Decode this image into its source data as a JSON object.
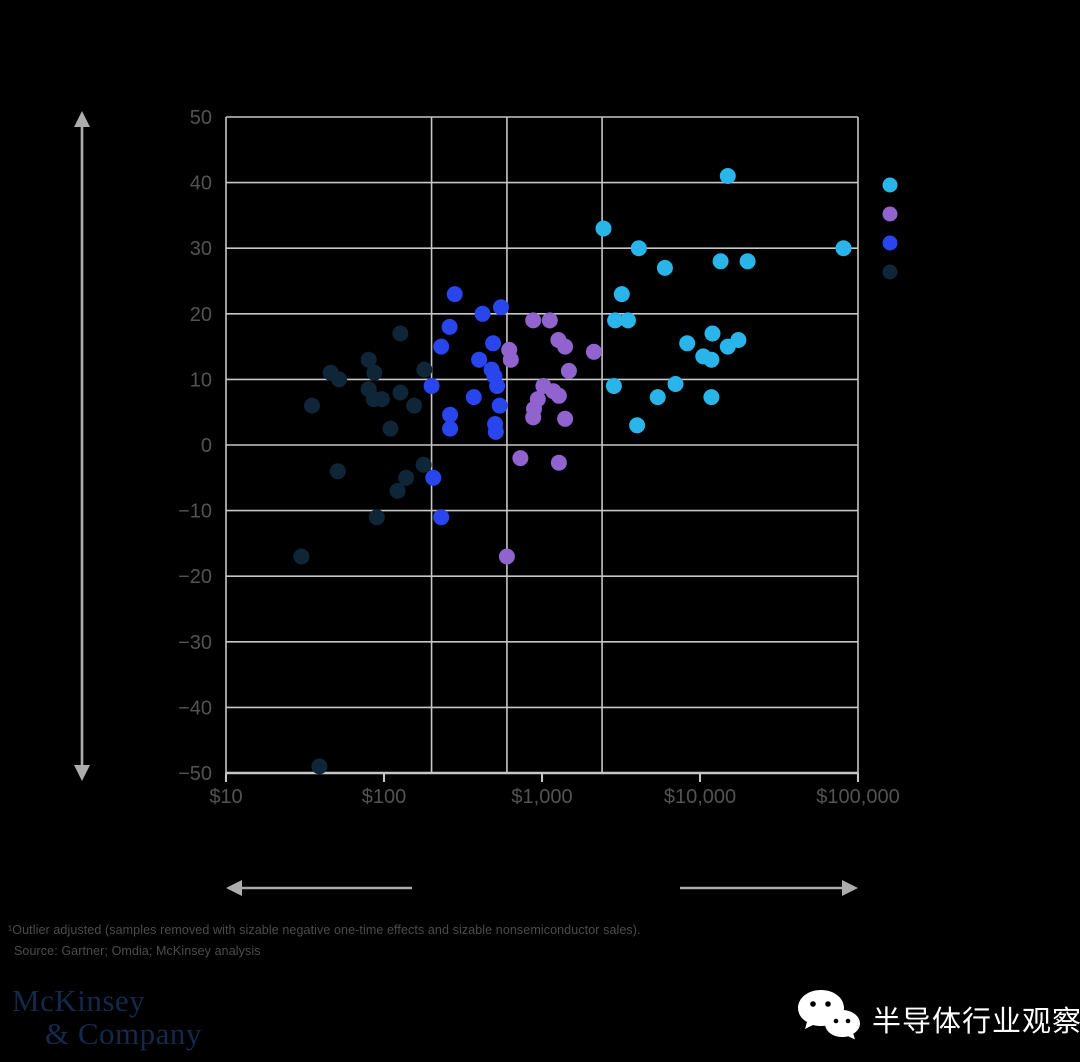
{
  "chart_data": {
    "type": "scatter",
    "x_axis": {
      "scale": "log",
      "values": [
        10,
        100,
        1000,
        10000,
        100000
      ],
      "tick_labels": [
        "$10",
        "$100",
        "$1,000",
        "$10,000",
        "$100,000"
      ],
      "range": [
        10,
        100000
      ]
    },
    "y_axis": {
      "values": [
        50,
        40,
        30,
        20,
        10,
        0,
        -10,
        -20,
        -30,
        -40,
        -50
      ],
      "tick_labels": [
        "50",
        "40",
        "30",
        "20",
        "10",
        "0",
        "−10",
        "−20",
        "−30",
        "−40",
        "−50"
      ],
      "range": [
        -50,
        50
      ]
    },
    "grid": true,
    "quartile_boundaries": [
      200,
      600,
      2400
    ],
    "style": {
      "grid_color": "#C6C6C6",
      "tick_color": "#535353",
      "dot_radius": 8
    },
    "series": [
      {
        "name": "series-navy",
        "color": "#0E2638",
        "points": [
          [
            127,
            17
          ],
          [
            80,
            13
          ],
          [
            46,
            11
          ],
          [
            52,
            10
          ],
          [
            87,
            11
          ],
          [
            180,
            11.5
          ],
          [
            80,
            8.5
          ],
          [
            86,
            7
          ],
          [
            97,
            7
          ],
          [
            127,
            8
          ],
          [
            155,
            6
          ],
          [
            35,
            6
          ],
          [
            110,
            2.5
          ],
          [
            178,
            -3
          ],
          [
            51,
            -4
          ],
          [
            138,
            -5
          ],
          [
            122,
            -7
          ],
          [
            90,
            -11
          ],
          [
            30,
            -17
          ],
          [
            39,
            -49
          ]
        ]
      },
      {
        "name": "series-blue",
        "color": "#2945EE",
        "points": [
          [
            280,
            23
          ],
          [
            420,
            20
          ],
          [
            550,
            21
          ],
          [
            260,
            18
          ],
          [
            230,
            15
          ],
          [
            490,
            15.5
          ],
          [
            400,
            13
          ],
          [
            480,
            11.5
          ],
          [
            500,
            10.5
          ],
          [
            200,
            9
          ],
          [
            370,
            7.3
          ],
          [
            520,
            9
          ],
          [
            540,
            6
          ],
          [
            262,
            4.6
          ],
          [
            262,
            2.5
          ],
          [
            505,
            3.2
          ],
          [
            510,
            2
          ],
          [
            205,
            -5
          ],
          [
            230,
            -11
          ]
        ]
      },
      {
        "name": "series-purple",
        "color": "#9163CE",
        "points": [
          [
            880,
            19
          ],
          [
            1120,
            19
          ],
          [
            1270,
            16
          ],
          [
            1400,
            15
          ],
          [
            2130,
            14.2
          ],
          [
            620,
            14.5
          ],
          [
            635,
            13
          ],
          [
            1480,
            11.3
          ],
          [
            1020,
            9
          ],
          [
            1180,
            8.2
          ],
          [
            1280,
            7.5
          ],
          [
            940,
            7
          ],
          [
            890,
            5.5
          ],
          [
            880,
            4.2
          ],
          [
            1400,
            4
          ],
          [
            730,
            -2
          ],
          [
            1280,
            -2.7
          ],
          [
            600,
            -17
          ]
        ]
      },
      {
        "name": "series-cyan",
        "color": "#29B5EA",
        "points": [
          [
            15000,
            41
          ],
          [
            2450,
            33
          ],
          [
            4100,
            30
          ],
          [
            81000,
            30
          ],
          [
            13500,
            28
          ],
          [
            20000,
            28
          ],
          [
            6000,
            27
          ],
          [
            3200,
            23
          ],
          [
            2900,
            19
          ],
          [
            3500,
            19
          ],
          [
            12000,
            17
          ],
          [
            17500,
            16
          ],
          [
            15000,
            15
          ],
          [
            8300,
            15.5
          ],
          [
            10500,
            13.5
          ],
          [
            11800,
            13
          ],
          [
            2850,
            9
          ],
          [
            7000,
            9.3
          ],
          [
            5400,
            7.3
          ],
          [
            11800,
            7.3
          ],
          [
            4000,
            3
          ]
        ]
      }
    ],
    "legend_position": "right"
  },
  "legend": {
    "items": [
      {
        "name": "cyan",
        "color": "#29B5EA"
      },
      {
        "name": "purple",
        "color": "#9163CE"
      },
      {
        "name": "blue",
        "color": "#2945EE"
      },
      {
        "name": "navy",
        "color": "#0E2638"
      }
    ]
  },
  "footnote": {
    "line1": "¹Outlier adjusted (samples removed with sizable negative one-time effects and sizable nonsemiconductor sales).",
    "line2": "Source: Gartner; Omdia; McKinsey analysis"
  },
  "logo": {
    "line1": "McKinsey",
    "line2": "& Company"
  },
  "wechat": {
    "name": "半导体行业观察"
  }
}
